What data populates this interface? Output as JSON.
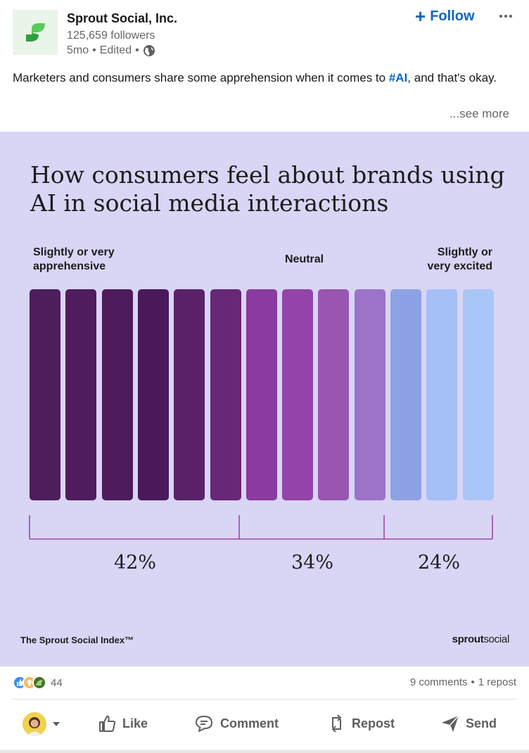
{
  "post": {
    "company_name": "Sprout Social, Inc.",
    "followers": "125,659 followers",
    "age": "5mo",
    "edited": "Edited",
    "follow_label": "Follow",
    "text_before": "Marketers and consumers share some apprehension when it comes to ",
    "hashtag": "#AI",
    "text_after": ", and that's okay.",
    "see_more": "...see more"
  },
  "graphic": {
    "title": "How consumers feel about brands using AI in social media interactions",
    "label_left_1": "Slightly or very",
    "label_left_2": "apprehensive",
    "label_mid": "Neutral",
    "label_right_1": "Slightly or",
    "label_right_2": "very excited",
    "footer_left": "The Sprout Social Index™",
    "footer_brand_bold": "sprout",
    "footer_brand_light": "social"
  },
  "chart_data": {
    "type": "bar",
    "title": "How consumers feel about brands using AI in social media interactions",
    "categories": [
      "Slightly or very apprehensive",
      "Neutral",
      "Slightly or very excited"
    ],
    "values": [
      42,
      34,
      24
    ],
    "value_labels": [
      "42%",
      "34%",
      "24%"
    ],
    "unit": "%",
    "bar_colors": [
      "#4e1d5c",
      "#4f1c5d",
      "#4d1b5b",
      "#4a195a",
      "#5a2169",
      "#682777",
      "#8a3aa0",
      "#9444a9",
      "#9a55b1",
      "#9d72c9",
      "#8da1e4",
      "#a4c0f7",
      "#a9c6f8"
    ]
  },
  "engagement": {
    "reaction_count": "44",
    "comments": "9 comments",
    "separator": "•",
    "reposts": "1 repost"
  },
  "actions": {
    "like": "Like",
    "comment": "Comment",
    "repost": "Repost",
    "send": "Send"
  }
}
